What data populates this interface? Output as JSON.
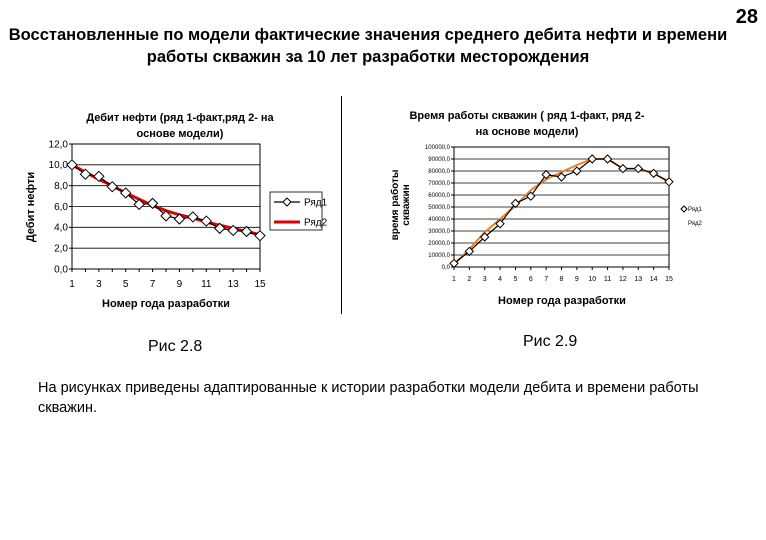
{
  "slide": {
    "title": "Восстановленные по модели фактические значения  среднего дебита нефти и времени работы скважин за 10 лет разработки месторождения",
    "page_number": "28",
    "caption_left": "Рис 2.8",
    "caption_right": "Рис 2.9",
    "note": "На рисунках приведены адаптированные к истории разработки  модели дебита и времени работы скважин."
  },
  "chart_data": [
    {
      "type": "line",
      "title": "Дебит нефти (ряд 1-факт,ряд 2- на основе модели)",
      "title_lines": [
        "Дебит нефти (ряд 1-факт,ряд 2- на",
        "основе модели)"
      ],
      "xlabel": "Номер года разработки",
      "ylabel": "Дебит нефти",
      "x": [
        1,
        2,
        3,
        4,
        5,
        6,
        7,
        8,
        9,
        10,
        11,
        12,
        13,
        14,
        15
      ],
      "x_ticks": [
        "1",
        "3",
        "5",
        "7",
        "9",
        "11",
        "13",
        "15"
      ],
      "y_ticks": [
        "0,0",
        "2,0",
        "4,0",
        "6,0",
        "8,0",
        "10,0",
        "12,0"
      ],
      "ylim": [
        0,
        12
      ],
      "grid": "horizontal",
      "legend_position": "right",
      "series": [
        {
          "name": "Ряд1",
          "color": "#000000",
          "marker": "diamond",
          "values": [
            10.0,
            9.1,
            8.9,
            7.9,
            7.3,
            6.2,
            6.3,
            5.1,
            4.8,
            5.0,
            4.6,
            3.9,
            3.7,
            3.6,
            3.2
          ]
        },
        {
          "name": "Ряд2",
          "color": "#e00000",
          "marker": "none",
          "values": [
            10.0,
            9.3,
            8.6,
            8.0,
            7.3,
            6.7,
            6.1,
            5.6,
            5.2,
            4.9,
            4.5,
            4.2,
            3.9,
            3.6,
            3.3
          ]
        }
      ]
    },
    {
      "type": "line",
      "title": "Время работы скважин ( ряд 1-факт, ряд 2- на основе модели)",
      "title_lines": [
        "Время работы скважин ( ряд 1-факт, ряд 2-",
        "на основе модели)"
      ],
      "xlabel": "Номер года разработки",
      "ylabel": "время работы скважин",
      "ylabel_lines": [
        "время работы",
        "скважин"
      ],
      "x": [
        1,
        2,
        3,
        4,
        5,
        6,
        7,
        8,
        9,
        10,
        11,
        12,
        13,
        14,
        15
      ],
      "x_ticks": [
        "1",
        "2",
        "3",
        "4",
        "5",
        "6",
        "7",
        "8",
        "9",
        "10",
        "11",
        "12",
        "13",
        "14",
        "15"
      ],
      "y_ticks": [
        "0,0",
        "10000,0",
        "20000,0",
        "30000,0",
        "40000,0",
        "50000,0",
        "60000,0",
        "70000,0",
        "80000,0",
        "90000,0",
        "100000,0"
      ],
      "ylim": [
        0,
        100000
      ],
      "grid": "horizontal",
      "legend_position": "right",
      "series": [
        {
          "name": "Ряд1",
          "color": "#000000",
          "marker": "diamond",
          "values": [
            3000,
            13000,
            25000,
            36000,
            53000,
            59000,
            77000,
            75000,
            80000,
            90000,
            90000,
            82000,
            82000,
            78000,
            71000
          ]
        },
        {
          "name": "Ряд2",
          "color": "#f08020",
          "marker": "none",
          "values": [
            2000,
            15000,
            29000,
            40000,
            51000,
            64000,
            73000,
            79000,
            85000,
            90000,
            90000,
            82000,
            82000,
            78000,
            71000
          ]
        }
      ]
    }
  ]
}
